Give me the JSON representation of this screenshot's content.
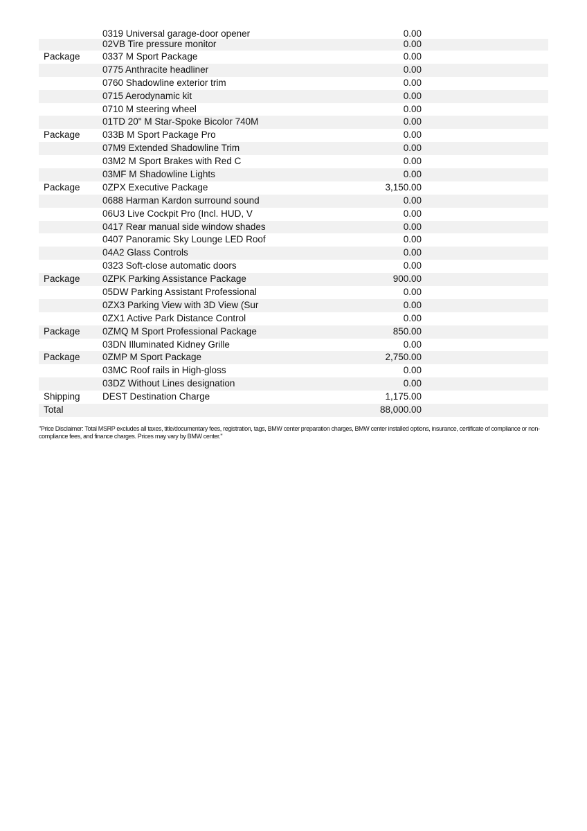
{
  "rows": [
    {
      "category": "",
      "description": "0319 Universal garage-door opener",
      "amount": "0.00"
    },
    {
      "category": "",
      "description": "02VB Tire pressure monitor",
      "amount": "0.00"
    },
    {
      "category": "Package",
      "description": "0337 M Sport Package",
      "amount": "0.00"
    },
    {
      "category": "",
      "description": "0775 Anthracite headliner",
      "amount": "0.00"
    },
    {
      "category": "",
      "description": "0760 Shadowline exterior trim",
      "amount": "0.00"
    },
    {
      "category": "",
      "description": "0715 Aerodynamic kit",
      "amount": "0.00"
    },
    {
      "category": "",
      "description": "0710 M steering wheel",
      "amount": "0.00"
    },
    {
      "category": "",
      "description": "01TD 20\" M Star-Spoke Bicolor 740M",
      "amount": "0.00"
    },
    {
      "category": "Package",
      "description": "033B M Sport Package Pro",
      "amount": "0.00"
    },
    {
      "category": "",
      "description": "07M9 Extended Shadowline Trim",
      "amount": "0.00"
    },
    {
      "category": "",
      "description": "03M2 M Sport Brakes with Red C",
      "amount": "0.00"
    },
    {
      "category": "",
      "description": "03MF M Shadowline Lights",
      "amount": "0.00"
    },
    {
      "category": "Package",
      "description": "0ZPX Executive Package",
      "amount": "3,150.00"
    },
    {
      "category": "",
      "description": "0688 Harman Kardon surround sound",
      "amount": "0.00"
    },
    {
      "category": "",
      "description": "06U3 Live Cockpit Pro (Incl. HUD, V",
      "amount": "0.00"
    },
    {
      "category": "",
      "description": "0417 Rear manual side window shades",
      "amount": "0.00"
    },
    {
      "category": "",
      "description": "0407 Panoramic Sky Lounge LED Roof",
      "amount": "0.00"
    },
    {
      "category": "",
      "description": "04A2 Glass Controls",
      "amount": "0.00"
    },
    {
      "category": "",
      "description": "0323 Soft-close automatic doors",
      "amount": "0.00"
    },
    {
      "category": "Package",
      "description": "0ZPK Parking Assistance Package",
      "amount": "900.00"
    },
    {
      "category": "",
      "description": "05DW Parking Assistant Professional",
      "amount": "0.00"
    },
    {
      "category": "",
      "description": "0ZX3 Parking View with 3D View (Sur",
      "amount": "0.00"
    },
    {
      "category": "",
      "description": "0ZX1 Active Park Distance Control",
      "amount": "0.00"
    },
    {
      "category": "Package",
      "description": "0ZMQ M Sport Professional Package",
      "amount": "850.00"
    },
    {
      "category": "",
      "description": "03DN Illuminated Kidney Grille",
      "amount": "0.00"
    },
    {
      "category": "Package",
      "description": "0ZMP M Sport Package",
      "amount": "2,750.00"
    },
    {
      "category": "",
      "description": "03MC Roof rails in High-gloss",
      "amount": "0.00"
    },
    {
      "category": "",
      "description": "03DZ Without Lines designation",
      "amount": "0.00"
    },
    {
      "category": "Shipping",
      "description": "DEST Destination Charge",
      "amount": "1,175.00"
    },
    {
      "category": "Total",
      "description": "",
      "amount": "88,000.00"
    }
  ],
  "disclaimer": "\"Price Disclaimer: Total MSRP excludes all taxes, title/documentary fees, registration, tags, BMW center preparation charges, BMW center installed options, insurance, certificate of compliance or non-compliance fees, and finance charges. Prices may vary by BMW center.\""
}
